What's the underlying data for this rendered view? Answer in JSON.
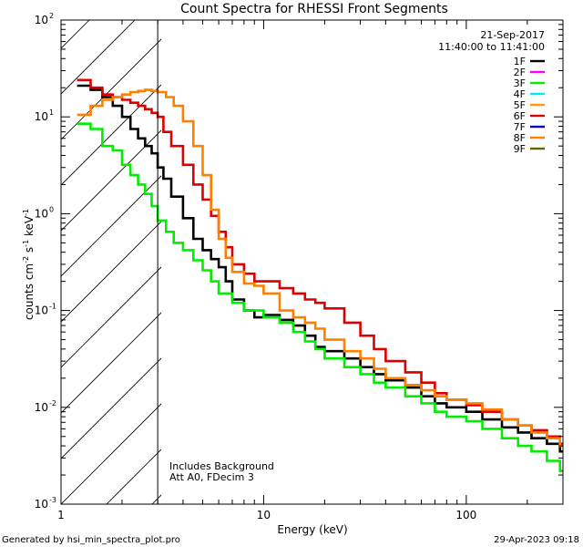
{
  "chart_data": {
    "type": "line",
    "title": "Count Spectra for RHESSI Front Segments",
    "xlabel": "Energy (keV)",
    "ylabel_parts": {
      "base": "counts cm",
      "exp1": "-2",
      "mid": " s",
      "exp2": "-1",
      "tail": " keV",
      "exp3": "-1"
    },
    "x_scale": "log",
    "y_scale": "log",
    "xlim": [
      1,
      300
    ],
    "ylim": [
      0.001,
      100
    ],
    "x_ticks": [
      {
        "value": 1,
        "label": "1"
      },
      {
        "value": 10,
        "label": "10"
      },
      {
        "value": 100,
        "label": "100"
      }
    ],
    "y_ticks": [
      {
        "value": 0.001,
        "mant": "10",
        "exp": "-3"
      },
      {
        "value": 0.01,
        "mant": "10",
        "exp": "-2"
      },
      {
        "value": 0.1,
        "mant": "10",
        "exp": "-1"
      },
      {
        "value": 1,
        "mant": "10",
        "exp": "0"
      },
      {
        "value": 10,
        "mant": "10",
        "exp": "1"
      },
      {
        "value": 100,
        "mant": "10",
        "exp": "2"
      }
    ],
    "shaded_region": {
      "x_from": 1,
      "x_to": 3,
      "style": "hatched"
    },
    "threshold_line_x": 3,
    "legend": {
      "date": "21-Sep-2017",
      "time_range": "11:40:00 to 11:41:00",
      "entries": [
        {
          "name": "1F",
          "color": "#000000"
        },
        {
          "name": "2F",
          "color": "#ff00ff"
        },
        {
          "name": "3F",
          "color": "#00ee00"
        },
        {
          "name": "4F",
          "color": "#00e5ff"
        },
        {
          "name": "5F",
          "color": "#ff9900"
        },
        {
          "name": "6F",
          "color": "#dd0000"
        },
        {
          "name": "7F",
          "color": "#0000cc"
        },
        {
          "name": "8F",
          "color": "#ff8000"
        },
        {
          "name": "9F",
          "color": "#666600"
        }
      ]
    },
    "annotations": [
      "Includes Background",
      "Att A0, FDecim 3"
    ],
    "series": [
      {
        "name": "1F",
        "color": "#000000",
        "points": [
          [
            1.2,
            21
          ],
          [
            1.4,
            19
          ],
          [
            1.6,
            16
          ],
          [
            1.8,
            13
          ],
          [
            2,
            10
          ],
          [
            2.2,
            7.5
          ],
          [
            2.4,
            6
          ],
          [
            2.6,
            5
          ],
          [
            2.8,
            4.2
          ],
          [
            3,
            3
          ],
          [
            3.2,
            2.3
          ],
          [
            3.5,
            1.5
          ],
          [
            4,
            0.9
          ],
          [
            4.5,
            0.55
          ],
          [
            5,
            0.42
          ],
          [
            5.5,
            0.34
          ],
          [
            6,
            0.28
          ],
          [
            6.5,
            0.2
          ],
          [
            7,
            0.13
          ],
          [
            8,
            0.1
          ],
          [
            9,
            0.085
          ],
          [
            10,
            0.09
          ],
          [
            12,
            0.08
          ],
          [
            14,
            0.07
          ],
          [
            16,
            0.055
          ],
          [
            18,
            0.042
          ],
          [
            20,
            0.038
          ],
          [
            25,
            0.032
          ],
          [
            30,
            0.026
          ],
          [
            35,
            0.022
          ],
          [
            40,
            0.019
          ],
          [
            50,
            0.016
          ],
          [
            60,
            0.013
          ],
          [
            70,
            0.011
          ],
          [
            80,
            0.01
          ],
          [
            100,
            0.009
          ],
          [
            120,
            0.0075
          ],
          [
            150,
            0.0062
          ],
          [
            180,
            0.0055
          ],
          [
            210,
            0.0048
          ],
          [
            250,
            0.0042
          ],
          [
            290,
            0.0035
          ]
        ]
      },
      {
        "name": "3F",
        "color": "#00ee00",
        "points": [
          [
            1.2,
            8.5
          ],
          [
            1.4,
            7.5
          ],
          [
            1.6,
            5
          ],
          [
            1.8,
            4.5
          ],
          [
            2,
            3.2
          ],
          [
            2.2,
            2.5
          ],
          [
            2.4,
            2
          ],
          [
            2.6,
            1.6
          ],
          [
            2.8,
            1.2
          ],
          [
            3,
            0.85
          ],
          [
            3.3,
            0.65
          ],
          [
            3.6,
            0.5
          ],
          [
            4,
            0.42
          ],
          [
            4.5,
            0.33
          ],
          [
            5,
            0.26
          ],
          [
            5.5,
            0.2
          ],
          [
            6,
            0.15
          ],
          [
            7,
            0.12
          ],
          [
            8,
            0.1
          ],
          [
            10,
            0.085
          ],
          [
            12,
            0.075
          ],
          [
            14,
            0.06
          ],
          [
            16,
            0.048
          ],
          [
            18,
            0.04
          ],
          [
            20,
            0.032
          ],
          [
            25,
            0.026
          ],
          [
            30,
            0.022
          ],
          [
            35,
            0.018
          ],
          [
            40,
            0.016
          ],
          [
            50,
            0.013
          ],
          [
            60,
            0.011
          ],
          [
            70,
            0.009
          ],
          [
            80,
            0.008
          ],
          [
            100,
            0.0072
          ],
          [
            120,
            0.006
          ],
          [
            150,
            0.0048
          ],
          [
            180,
            0.004
          ],
          [
            210,
            0.0035
          ],
          [
            250,
            0.0028
          ],
          [
            290,
            0.0022
          ]
        ]
      },
      {
        "name": "6F",
        "color": "#dd0000",
        "points": [
          [
            1.2,
            24
          ],
          [
            1.4,
            20
          ],
          [
            1.6,
            17
          ],
          [
            1.8,
            16
          ],
          [
            2,
            15
          ],
          [
            2.2,
            14
          ],
          [
            2.4,
            13
          ],
          [
            2.6,
            12
          ],
          [
            2.8,
            11
          ],
          [
            3,
            10
          ],
          [
            3.2,
            7
          ],
          [
            3.5,
            5
          ],
          [
            4,
            3.2
          ],
          [
            4.5,
            2
          ],
          [
            5,
            1.4
          ],
          [
            5.5,
            0.95
          ],
          [
            6,
            0.65
          ],
          [
            6.5,
            0.45
          ],
          [
            7,
            0.3
          ],
          [
            8,
            0.24
          ],
          [
            9,
            0.2
          ],
          [
            10,
            0.2
          ],
          [
            12,
            0.17
          ],
          [
            14,
            0.15
          ],
          [
            16,
            0.13
          ],
          [
            18,
            0.12
          ],
          [
            20,
            0.105
          ],
          [
            25,
            0.075
          ],
          [
            30,
            0.055
          ],
          [
            35,
            0.04
          ],
          [
            40,
            0.03
          ],
          [
            50,
            0.023
          ],
          [
            60,
            0.018
          ],
          [
            70,
            0.014
          ],
          [
            80,
            0.012
          ],
          [
            100,
            0.0105
          ],
          [
            120,
            0.009
          ],
          [
            150,
            0.0075
          ],
          [
            180,
            0.0065
          ],
          [
            210,
            0.0058
          ],
          [
            250,
            0.005
          ],
          [
            290,
            0.0042
          ]
        ]
      },
      {
        "name": "8F",
        "color": "#ff8000",
        "points": [
          [
            1.2,
            10.5
          ],
          [
            1.4,
            13
          ],
          [
            1.6,
            15
          ],
          [
            1.8,
            16
          ],
          [
            2,
            17
          ],
          [
            2.2,
            18
          ],
          [
            2.4,
            18.5
          ],
          [
            2.6,
            19
          ],
          [
            2.8,
            18.5
          ],
          [
            3,
            18
          ],
          [
            3.3,
            16
          ],
          [
            3.6,
            13
          ],
          [
            4,
            9
          ],
          [
            4.5,
            5
          ],
          [
            5,
            2.5
          ],
          [
            5.5,
            1.1
          ],
          [
            6,
            0.55
          ],
          [
            6.5,
            0.35
          ],
          [
            7,
            0.25
          ],
          [
            8,
            0.19
          ],
          [
            9,
            0.18
          ],
          [
            10,
            0.15
          ],
          [
            12,
            0.1
          ],
          [
            14,
            0.085
          ],
          [
            16,
            0.075
          ],
          [
            18,
            0.065
          ],
          [
            20,
            0.05
          ],
          [
            25,
            0.038
          ],
          [
            30,
            0.032
          ],
          [
            35,
            0.025
          ],
          [
            40,
            0.02
          ],
          [
            50,
            0.017
          ],
          [
            60,
            0.015
          ],
          [
            70,
            0.013
          ],
          [
            80,
            0.012
          ],
          [
            100,
            0.011
          ],
          [
            120,
            0.0095
          ],
          [
            150,
            0.0075
          ],
          [
            180,
            0.0065
          ],
          [
            210,
            0.0055
          ],
          [
            250,
            0.0048
          ],
          [
            290,
            0.004
          ]
        ]
      }
    ]
  },
  "footer": {
    "generator": "Generated by hsi_min_spectra_plot.pro",
    "timestamp": "29-Apr-2023 09:18"
  }
}
